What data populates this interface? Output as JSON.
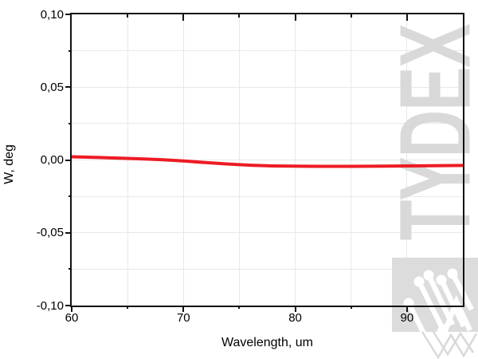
{
  "figure": {
    "watermark_text": "TYDEX",
    "colors": {
      "background": "#ffffff",
      "frame": "#111111",
      "grid": "#e8e8e8",
      "watermark": "#d9d9d9",
      "watermark_square": "#dcdcdc",
      "line": "#ed1c24"
    }
  },
  "chart_data": {
    "type": "line",
    "title": "",
    "xlabel": "Wavelength, um",
    "ylabel": "W, deg",
    "xlim": [
      60,
      95
    ],
    "ylim": [
      -0.1,
      0.1
    ],
    "x_major_ticks": [
      60,
      70,
      80,
      90
    ],
    "x_tick_labels": [
      "60",
      "70",
      "80",
      "90"
    ],
    "x_minor_ticks": [
      65,
      75,
      85
    ],
    "y_major_ticks": [
      0.1,
      0.05,
      0.0,
      -0.05,
      -0.1
    ],
    "y_tick_labels": [
      "0,10",
      "0,05",
      "0,00",
      "-0,05",
      "-0,10"
    ],
    "y_minor_ticks": [
      0.075,
      0.025,
      -0.025,
      -0.075
    ],
    "grid": "on-minor-and-major",
    "legend": "none",
    "decimal_separator": ",",
    "series": [
      {
        "name": "W",
        "color": "#ed1c24",
        "width": 4,
        "x": [
          60,
          62,
          64,
          66,
          68,
          70,
          72,
          74,
          76,
          78,
          80,
          82,
          85,
          88,
          90,
          92,
          95
        ],
        "y": [
          0.0022,
          0.0018,
          0.0013,
          0.0008,
          0.0002,
          -0.0007,
          -0.0018,
          -0.0028,
          -0.0036,
          -0.0041,
          -0.0043,
          -0.0044,
          -0.0044,
          -0.0042,
          -0.0041,
          -0.004,
          -0.0038
        ]
      }
    ]
  }
}
